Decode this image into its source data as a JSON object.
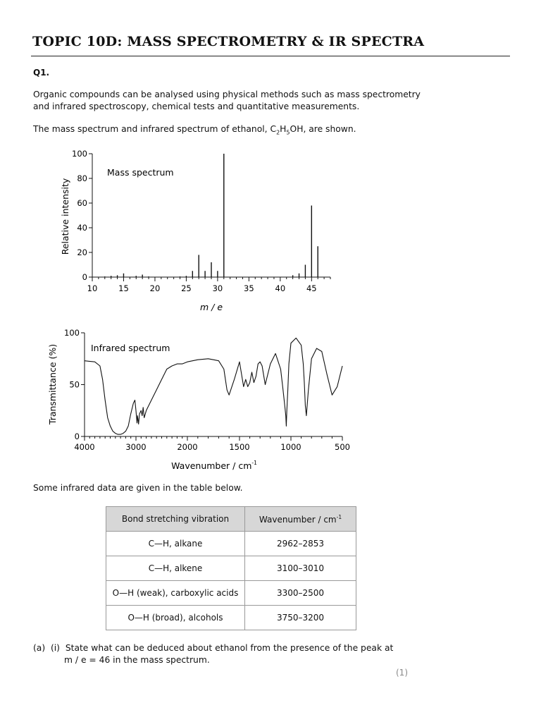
{
  "header": {
    "title": "TOPIC 10D: MASS SPECTROMETRY & IR SPECTRA"
  },
  "question": {
    "number": "Q1.",
    "intro_line1": "Organic compounds can be analysed using physical methods such as mass spectrometry",
    "intro_line2": "and infrared spectroscopy, chemical tests and quantitative measurements.",
    "spectra_sentence": {
      "before": "The mass spectrum and infrared spectrum of ethanol, C",
      "sub1": "2",
      "mid": "H",
      "sub2": "5",
      "after": "OH, are shown."
    },
    "table_intro": "Some infrared data are given in the table below.",
    "part_a": {
      "label": "(a)",
      "sub_label": "(i)",
      "line1": "State what can be deduced about ethanol from the presence of the peak at",
      "line2": "m / e = 46 in the mass spectrum.",
      "marks": "(1)"
    }
  },
  "chart_data": [
    {
      "type": "bar",
      "title": "Mass spectrum",
      "xlabel": "m / e",
      "ylabel": "Relative intensity",
      "xlim": [
        10,
        48
      ],
      "ylim": [
        0,
        100
      ],
      "x_ticks": [
        10,
        15,
        20,
        25,
        30,
        35,
        40,
        45
      ],
      "y_ticks": [
        0,
        20,
        40,
        60,
        80,
        100
      ],
      "grid": false,
      "series": [
        {
          "x": [
            12,
            13,
            14,
            15,
            17,
            18,
            19,
            24,
            25,
            26,
            27,
            28,
            29,
            30,
            31,
            42,
            43,
            44,
            45,
            46
          ],
          "values": [
            0.5,
            1,
            1.5,
            3,
            1,
            2,
            0.5,
            0.5,
            1,
            5,
            18,
            5,
            12,
            5,
            100,
            1.5,
            3,
            10,
            58,
            25
          ]
        }
      ]
    },
    {
      "type": "line",
      "title": "Infrared spectrum",
      "xlabel": "Wavenumber / cm",
      "xlabel_sup": "-1",
      "ylabel": "Transmittance (%)",
      "xlim": [
        4000,
        500
      ],
      "x_reversed": true,
      "ylim": [
        0,
        100
      ],
      "x_ticks": [
        4000,
        3000,
        2000,
        1500,
        1000,
        500
      ],
      "y_ticks": [
        0,
        50,
        100
      ],
      "grid": false,
      "series": [
        {
          "x": [
            4000,
            3800,
            3700,
            3650,
            3600,
            3550,
            3500,
            3450,
            3400,
            3350,
            3300,
            3250,
            3200,
            3150,
            3100,
            3050,
            3020,
            3000,
            2980,
            2970,
            2950,
            2930,
            2900,
            2880,
            2860,
            2840,
            2800,
            2700,
            2600,
            2500,
            2400,
            2300,
            2200,
            2100,
            2000,
            1900,
            1800,
            1750,
            1700,
            1650,
            1620,
            1600,
            1550,
            1500,
            1480,
            1460,
            1440,
            1420,
            1400,
            1380,
            1360,
            1340,
            1320,
            1300,
            1280,
            1250,
            1200,
            1150,
            1100,
            1080,
            1060,
            1050,
            1045,
            1040,
            1030,
            1020,
            1000,
            950,
            900,
            880,
            870,
            860,
            850,
            830,
            800,
            750,
            700,
            650,
            600,
            550,
            500
          ],
          "y": [
            73,
            72,
            68,
            55,
            35,
            18,
            10,
            5,
            3,
            2,
            2,
            3,
            5,
            10,
            22,
            32,
            35,
            25,
            13,
            20,
            12,
            22,
            25,
            20,
            28,
            18,
            25,
            35,
            45,
            55,
            65,
            68,
            70,
            70,
            72,
            74,
            75,
            74,
            73,
            65,
            45,
            40,
            55,
            72,
            60,
            48,
            55,
            48,
            52,
            62,
            52,
            58,
            70,
            72,
            68,
            50,
            70,
            80,
            65,
            48,
            30,
            20,
            10,
            25,
            45,
            70,
            90,
            95,
            88,
            70,
            52,
            30,
            20,
            45,
            75,
            85,
            82,
            60,
            40,
            48,
            68
          ]
        }
      ]
    }
  ],
  "ir_table": {
    "headers": {
      "bond": "Bond stretching vibration",
      "wavenumber": "Wavenumber / cm",
      "wavenumber_sup": "-1"
    },
    "rows": [
      {
        "bond": "C—H, alkane",
        "range": "2962–2853"
      },
      {
        "bond": "C—H, alkene",
        "range": "3100–3010"
      },
      {
        "bond": "O—H (weak), carboxylic acids",
        "range": "3300–2500"
      },
      {
        "bond": "O—H (broad), alcohols",
        "range": "3750–3200"
      }
    ]
  }
}
